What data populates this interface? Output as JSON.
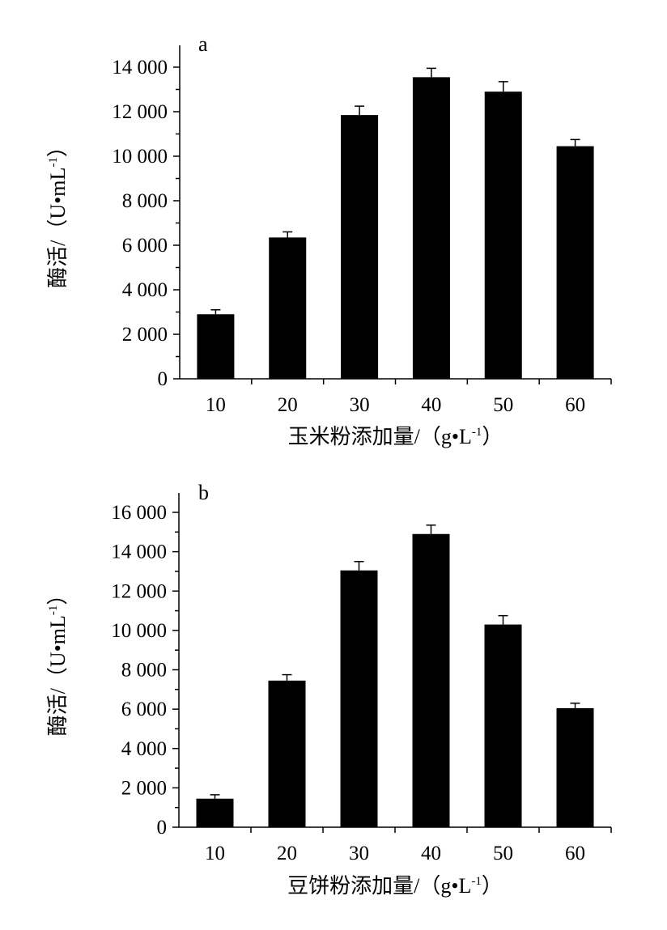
{
  "figure": {
    "background": "#ffffff",
    "bar_color": "#000000"
  },
  "chart_data": [
    {
      "type": "bar",
      "panel_label": "a",
      "title": "",
      "xlabel": "玉米粉添加量/（g•L-1）",
      "xlabel_parts": {
        "main": "玉米粉添加量/（g•L",
        "sup": "-1",
        "tail": "）"
      },
      "ylabel": "酶活/（U•mL-1）",
      "ylabel_parts": {
        "main": "酶活/（U•mL",
        "sup": "-1",
        "tail": "）"
      },
      "categories": [
        "10",
        "20",
        "30",
        "40",
        "50",
        "60"
      ],
      "values": [
        2900,
        6350,
        11850,
        13550,
        12900,
        10450
      ],
      "errors": [
        200,
        250,
        400,
        400,
        450,
        300
      ],
      "ylim": [
        0,
        14000
      ],
      "yticks": [
        0,
        2000,
        4000,
        6000,
        8000,
        10000,
        12000,
        14000
      ],
      "ytick_labels": [
        "0",
        "2 000",
        "4 000",
        "6 000",
        "8 000",
        "10 000",
        "12 000",
        "14 000"
      ],
      "grid": false
    },
    {
      "type": "bar",
      "panel_label": "b",
      "title": "",
      "xlabel": "豆饼粉添加量/（g•L-1）",
      "xlabel_parts": {
        "main": "豆饼粉添加量/（g•L",
        "sup": "-1",
        "tail": "）"
      },
      "ylabel": "酶活/（U•mL-1）",
      "ylabel_parts": {
        "main": "酶活/（U•mL",
        "sup": "-1",
        "tail": "）"
      },
      "categories": [
        "10",
        "20",
        "30",
        "40",
        "50",
        "60"
      ],
      "values": [
        1450,
        7450,
        13050,
        14900,
        10300,
        6050
      ],
      "errors": [
        200,
        300,
        450,
        450,
        450,
        250
      ],
      "ylim": [
        0,
        16000
      ],
      "yticks": [
        0,
        2000,
        4000,
        6000,
        8000,
        10000,
        12000,
        14000,
        16000
      ],
      "ytick_labels": [
        "0",
        "2 000",
        "4 000",
        "6 000",
        "8 000",
        "10 000",
        "12 000",
        "14 000",
        "16 000"
      ],
      "grid": false
    }
  ]
}
